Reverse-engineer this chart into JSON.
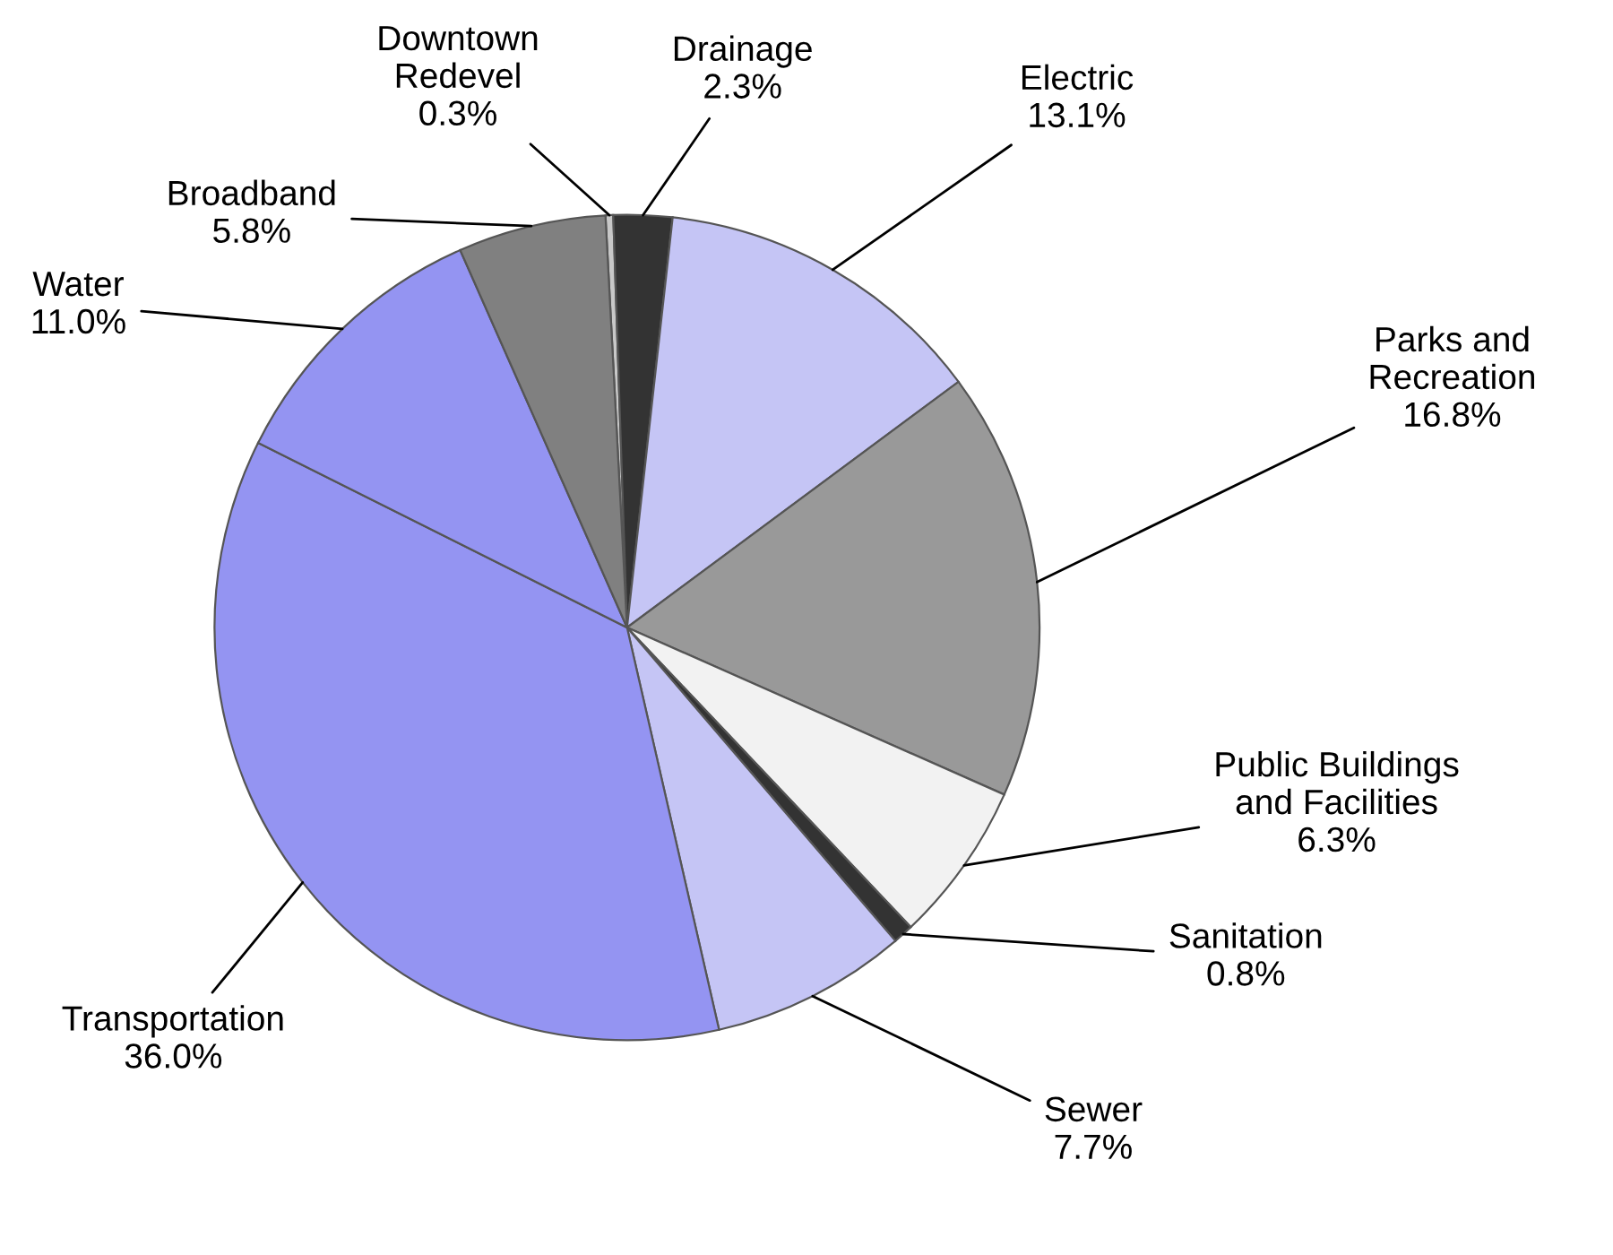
{
  "chart_data": {
    "type": "pie",
    "categories": [
      "Downtown\nRedevel",
      "Drainage",
      "Electric",
      "Parks and\nRecreation",
      "Public Buildings\nand Facilities",
      "Sanitation",
      "Sewer",
      "Transportation",
      "Water",
      "Broadband"
    ],
    "values": [
      0.3,
      2.3,
      13.1,
      16.8,
      6.3,
      0.8,
      7.7,
      36.0,
      11.0,
      5.8
    ],
    "colors": [
      "#c8c8c8",
      "#333333",
      "#c5c5f5",
      "#999999",
      "#f2f2f2",
      "#333333",
      "#c5c5f5",
      "#9494f2",
      "#9494f2",
      "#808080"
    ],
    "value_labels": [
      "0.3%",
      "2.3%",
      "13.1%",
      "16.8%",
      "6.3%",
      "0.8%",
      "7.7%",
      "36.0%",
      "11.0%",
      "5.8%"
    ],
    "legend": false
  }
}
